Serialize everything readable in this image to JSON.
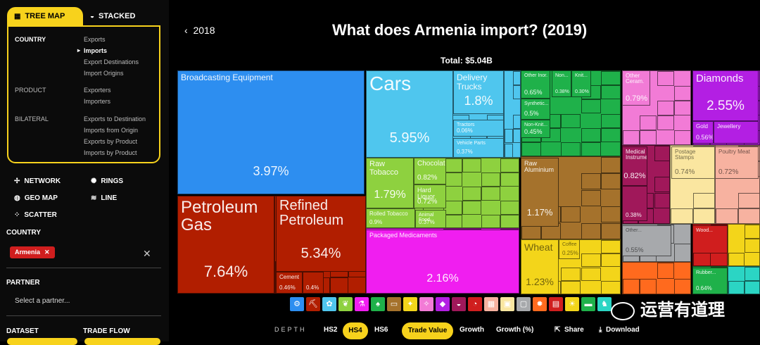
{
  "sidebar": {
    "tabs": [
      {
        "label": "TREE MAP"
      },
      {
        "label": "STACKED"
      }
    ],
    "groups": [
      {
        "label": "COUNTRY",
        "items": [
          "Exports",
          "Imports",
          "Export Destinations",
          "Import Origins"
        ]
      },
      {
        "label": "PRODUCT",
        "items": [
          "Exporters",
          "Importers"
        ]
      },
      {
        "label": "BILATERAL",
        "items": [
          "Exports to Destination",
          "Imports from Origin",
          "Exports by Product",
          "Imports by Product"
        ]
      }
    ],
    "vis_options": [
      "NETWORK",
      "RINGS",
      "GEO MAP",
      "LINE",
      "SCATTER"
    ],
    "country_label": "COUNTRY",
    "country_chip": "Armenia",
    "partner_label": "PARTNER",
    "partner_placeholder": "Select a partner...",
    "dataset_label": "DATASET",
    "tradeflow_label": "TRADE FLOW"
  },
  "header": {
    "back_year": "2018",
    "title": "What does Armenia import? (2019)",
    "total": "Total: $5.04B"
  },
  "treemap": [
    {
      "id": "broadcast",
      "label": "Broadcasting Equipment",
      "value": "3.97%",
      "color": "#2d8ef0"
    },
    {
      "id": "petgas",
      "label": "Petroleum Gas",
      "value": "7.64%",
      "color": "#b11e00"
    },
    {
      "id": "refpet",
      "label": "Refined Petroleum",
      "value": "5.34%",
      "color": "#b11e00"
    },
    {
      "id": "cement",
      "label": "Cement",
      "value": "0.46%",
      "color": "#b11e00"
    },
    {
      "id": "m04",
      "label": "",
      "value": "0.4%",
      "color": "#b11e00"
    },
    {
      "id": "cars",
      "label": "Cars",
      "value": "5.95%",
      "color": "#4fc6ee"
    },
    {
      "id": "delivery",
      "label": "Delivery Trucks",
      "value": "1.8%",
      "color": "#4fc6ee"
    },
    {
      "id": "tractors",
      "label": "Tractors",
      "value": "0.06%",
      "color": "#4fc6ee"
    },
    {
      "id": "vehparts",
      "label": "Vehicle Parts",
      "value": "0.37%",
      "color": "#4fc6ee"
    },
    {
      "id": "rawtob",
      "label": "Raw Tobacco",
      "value": "1.79%",
      "color": "#8ed13f"
    },
    {
      "id": "choc",
      "label": "Chocolate",
      "value": "0.82%",
      "color": "#8ed13f"
    },
    {
      "id": "hardliq",
      "label": "Hard Liquor",
      "value": "0.72%",
      "color": "#8ed13f"
    },
    {
      "id": "rolled",
      "label": "Rolled Tobacco",
      "value": "0.9%",
      "color": "#8ed13f"
    },
    {
      "id": "animfood",
      "label": "Animal Food",
      "value": "0.37%",
      "color": "#8ed13f"
    },
    {
      "id": "pharma",
      "label": "Packaged Medicaments",
      "value": "2.16%",
      "color": "#f01ef0"
    },
    {
      "id": "otherchem",
      "label": "Other Inor.",
      "value": "0.65%",
      "color": "#1fb14a"
    },
    {
      "id": "synth",
      "label": "Synthetic...",
      "value": "0.5%",
      "color": "#1fb14a"
    },
    {
      "id": "nonknit",
      "label": "Non-Knit...",
      "value": "0.45%",
      "color": "#1fb14a"
    },
    {
      "id": "g038",
      "label": "Non...",
      "value": "0.38%",
      "color": "#1fb14a"
    },
    {
      "id": "g030",
      "label": "Knit...",
      "value": "0.30%",
      "color": "#1fb14a"
    },
    {
      "id": "rawalu",
      "label": "Raw Aluminium",
      "value": "1.17%",
      "color": "#a5722c"
    },
    {
      "id": "wheat",
      "label": "Wheat",
      "value": "1.23%",
      "color": "#f3d51a"
    },
    {
      "id": "coffee",
      "label": "Coffee",
      "value": "0.25%",
      "color": "#f3d51a"
    },
    {
      "id": "ceramic",
      "label": "Other Ceram.",
      "value": "0.79%",
      "color": "#f27bd6"
    },
    {
      "id": "medinst",
      "label": "Medical Instruments",
      "value": "0.82%",
      "color": "#a0185a"
    },
    {
      "id": "m038",
      "label": "",
      "value": "0.38%",
      "color": "#a0185a"
    },
    {
      "id": "diamonds",
      "label": "Diamonds",
      "value": "2.55%",
      "color": "#b31fe3"
    },
    {
      "id": "gold",
      "label": "Gold",
      "value": "0.56%",
      "color": "#b31fe3"
    },
    {
      "id": "jewel",
      "label": "Jewellery",
      "value": "",
      "color": "#b31fe3"
    },
    {
      "id": "postage",
      "label": "Postage Stamps",
      "value": "0.74%",
      "color": "#fae6a0"
    },
    {
      "id": "poultry",
      "label": "Poultry Meat",
      "value": "0.72%",
      "color": "#f7b2a0"
    },
    {
      "id": "other055",
      "label": "Other...",
      "value": "0.55%",
      "color": "#a7a9ac"
    },
    {
      "id": "wood",
      "label": "Wood...",
      "value": "",
      "color": "#d01e1e"
    },
    {
      "id": "rubber",
      "label": "Rubber...",
      "value": "0.64%",
      "color": "#1fb14a"
    }
  ],
  "controls": {
    "depth_label": "DEPTH",
    "depth_options": [
      "HS2",
      "HS4",
      "HS6"
    ],
    "metric_options": [
      "Trade Value",
      "Growth",
      "Growth (%)"
    ],
    "share": "Share",
    "download": "Download"
  },
  "watermark": "运营有道理",
  "category_icons": [
    "gear-icon",
    "axe-icon",
    "wheat-icon",
    "leaf-icon",
    "flask-icon",
    "shirt-icon",
    "hide-icon",
    "shoe-icon",
    "gem-icon",
    "diamond-icon",
    "stone-icon",
    "gauge-icon",
    "tile-icon",
    "box-icon",
    "cube-icon",
    "flame-icon",
    "chip-icon",
    "sun-icon",
    "car-icon",
    "horse-icon"
  ],
  "colors": {
    "accent": "#f7d21c"
  }
}
